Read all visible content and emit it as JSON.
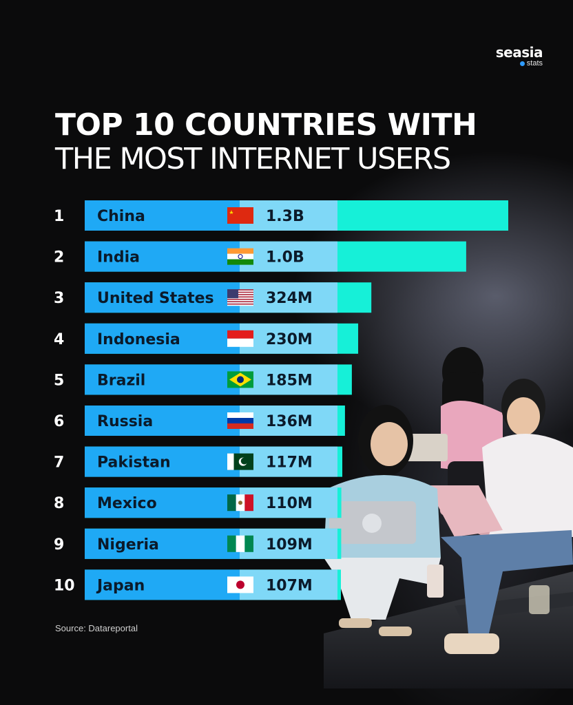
{
  "logo": {
    "word": "seasia",
    "sub": "stats"
  },
  "title": {
    "line1": "TOP 10 COUNTRIES WITH",
    "line2": "THE MOST INTERNET USERS"
  },
  "source": "Source: Datareportal",
  "colors": {
    "bar_main": "#1fa9f5",
    "bar_mid": "#7fd8f7",
    "bar_tail": "#16f0d8",
    "background": "#0b0b0c"
  },
  "chart_data": {
    "type": "bar",
    "orientation": "horizontal",
    "ranks": [
      "1",
      "2",
      "3",
      "4",
      "5",
      "6",
      "7",
      "8",
      "9",
      "10"
    ],
    "categories": [
      "China",
      "India",
      "United States",
      "Indonesia",
      "Brazil",
      "Russia",
      "Pakistan",
      "Mexico",
      "Nigeria",
      "Japan"
    ],
    "values": [
      1300,
      1000,
      324,
      230,
      185,
      136,
      117,
      110,
      109,
      107
    ],
    "value_labels": [
      "1.3B",
      "1.0B",
      "324M",
      "230M",
      "185M",
      "136M",
      "117M",
      "110M",
      "109M",
      "107M"
    ],
    "flags": [
      "china-flag",
      "india-flag",
      "usa-flag",
      "indonesia-flag",
      "brazil-flag",
      "russia-flag",
      "pakistan-flag",
      "mexico-flag",
      "nigeria-flag",
      "japan-flag"
    ]
  }
}
